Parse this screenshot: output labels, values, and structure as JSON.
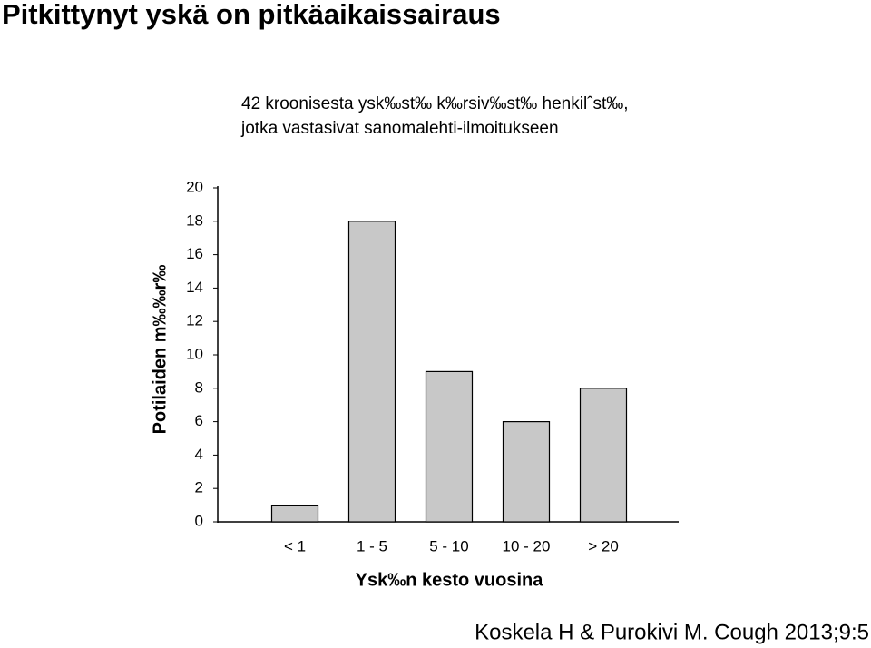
{
  "slide_title": "Pitkittynyt yskä on pitkäaikaissairaus",
  "citation": "Koskela H & Purokivi M. Cough 2013;9:5",
  "chart_data": {
    "type": "bar",
    "title": [
      "42 kroonisesta ysk‰st‰ k‰rsiv‰st‰ henkilˆst‰,",
      "jotka vastasivat sanomalehti-ilmoitukseen"
    ],
    "y_label": "Potilaiden m‰‰r‰",
    "x_label": "Ysk‰n kesto vuosina",
    "categories": [
      "< 1",
      "1 - 5",
      "5 - 10",
      "10 - 20",
      "> 20"
    ],
    "values": [
      1,
      18,
      9,
      6,
      8
    ],
    "color": "#c8c8c8",
    "ylim": [
      0,
      20
    ],
    "yticks": [
      0,
      2,
      4,
      6,
      8,
      10,
      12,
      14,
      16,
      18,
      20
    ]
  }
}
